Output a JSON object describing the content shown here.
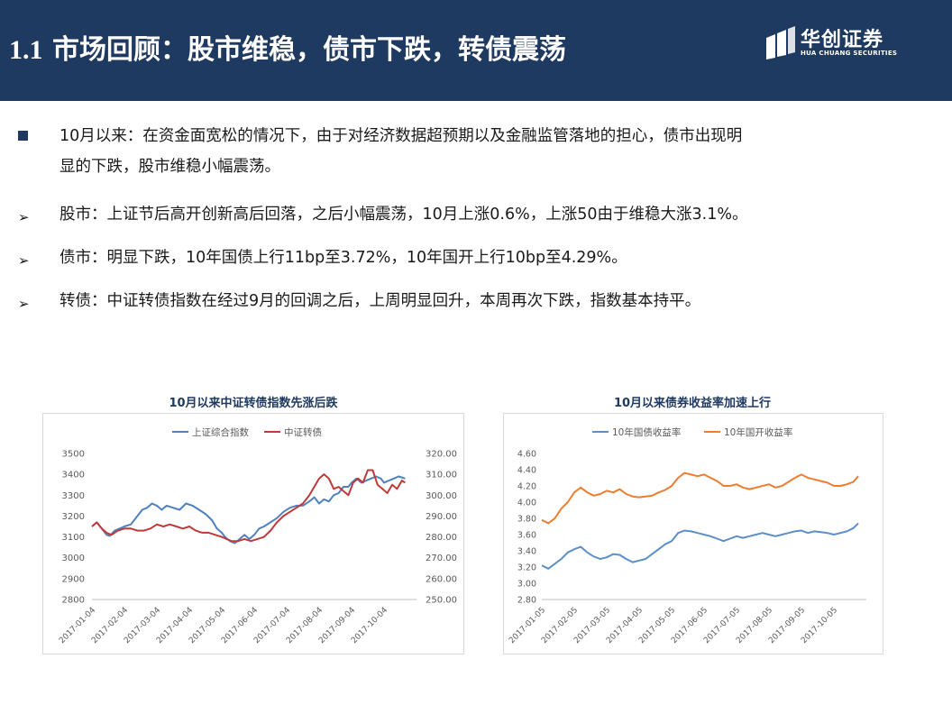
{
  "header": {
    "title_num": "1.1",
    "title_text": "市场回顾：股市维稳，债市下跌，转债震荡",
    "logo_name": "华创证券",
    "logo_sub": "HUA CHUANG SECURITIES"
  },
  "bullets": {
    "intro_line1": "10月以来：在资金面宽松的情况下，由于对经济数据超预期以及金融监管落地的担心，债市出现明",
    "intro_line2": "显的下跌，股市维稳小幅震荡。",
    "stock": "股市：上证节后高开创新高后回落，之后小幅震荡，10月上涨0.6%，上涨50由于维稳大涨3.1%。",
    "bond": "债市：明显下跌，10年国债上行11bp至3.72%，10年国开上行10bp至4.29%。",
    "cb": "转债：中证转债指数在经过9月的回调之后，上周明显回升，本周再次下跌，指数基本持平。"
  },
  "colors": {
    "navy": "#1f3a60",
    "blue_series": "#4f81bd",
    "red_series": "#c0393b",
    "orange_series": "#ed7d31",
    "blue_series2": "#5b8fc7"
  },
  "chart_data": [
    {
      "type": "line",
      "title": "10月以来中证转债指数先涨后跌",
      "categories": [
        "2017-01-04",
        "2017-02-04",
        "2017-03-04",
        "2017-04-04",
        "2017-05-04",
        "2017-06-04",
        "2017-07-04",
        "2017-08-04",
        "2017-09-04",
        "2017-10-04"
      ],
      "y_left_ticks": [
        "3500",
        "3400",
        "3300",
        "3200",
        "3100",
        "3000",
        "2900",
        "2800"
      ],
      "y_right_ticks": [
        "320.00",
        "310.00",
        "300.00",
        "290.00",
        "280.00",
        "270.00",
        "260.00",
        "250.00"
      ],
      "ylim_left": [
        2800,
        3500
      ],
      "ylim_right": [
        250,
        320
      ],
      "legend": "top",
      "series": [
        {
          "name": "上证综合指数",
          "axis": "left",
          "x": [
            0,
            0.15,
            0.3,
            0.45,
            0.55,
            0.7,
            0.85,
            1.0,
            1.2,
            1.4,
            1.55,
            1.7,
            1.85,
            2.0,
            2.15,
            2.3,
            2.5,
            2.7,
            2.9,
            3.1,
            3.3,
            3.5,
            3.7,
            3.85,
            4.0,
            4.1,
            4.25,
            4.4,
            4.55,
            4.7,
            4.85,
            5.0,
            5.15,
            5.3,
            5.5,
            5.7,
            5.9,
            6.1,
            6.3,
            6.5,
            6.7,
            6.85,
            7.0,
            7.15,
            7.3,
            7.45,
            7.6,
            7.75,
            7.9,
            8.0,
            8.15,
            8.3,
            8.45,
            8.6,
            8.75,
            8.9,
            9.0,
            9.15,
            9.3,
            9.45,
            9.55,
            9.65
          ],
          "values": [
            3150,
            3170,
            3140,
            3110,
            3105,
            3130,
            3140,
            3150,
            3160,
            3200,
            3230,
            3240,
            3260,
            3250,
            3230,
            3250,
            3240,
            3230,
            3260,
            3250,
            3230,
            3210,
            3180,
            3140,
            3120,
            3100,
            3080,
            3070,
            3090,
            3110,
            3090,
            3110,
            3140,
            3150,
            3170,
            3190,
            3220,
            3240,
            3250,
            3250,
            3270,
            3290,
            3260,
            3280,
            3270,
            3300,
            3310,
            3340,
            3340,
            3360,
            3380,
            3360,
            3370,
            3380,
            3390,
            3380,
            3360,
            3370,
            3380,
            3390,
            3385,
            3380
          ]
        },
        {
          "name": "中证转债",
          "axis": "right",
          "x": [
            0,
            0.15,
            0.3,
            0.45,
            0.6,
            0.8,
            1.0,
            1.2,
            1.4,
            1.6,
            1.8,
            2.0,
            2.2,
            2.4,
            2.6,
            2.8,
            3.0,
            3.2,
            3.4,
            3.6,
            3.8,
            4.0,
            4.15,
            4.3,
            4.5,
            4.7,
            4.9,
            5.1,
            5.3,
            5.5,
            5.7,
            5.9,
            6.1,
            6.3,
            6.5,
            6.7,
            6.85,
            7.0,
            7.15,
            7.3,
            7.45,
            7.6,
            7.75,
            7.9,
            8.05,
            8.2,
            8.35,
            8.5,
            8.65,
            8.8,
            8.95,
            9.1,
            9.25,
            9.4,
            9.55,
            9.65
          ],
          "values": [
            285,
            287,
            284,
            282,
            281,
            283,
            284,
            284,
            283,
            283,
            284,
            286,
            285,
            286,
            285,
            284,
            285,
            283,
            282,
            282,
            281,
            280,
            279,
            278,
            278,
            279,
            278,
            279,
            280,
            283,
            287,
            290,
            292,
            294,
            296,
            300,
            304,
            308,
            310,
            308,
            303,
            304,
            302,
            300,
            306,
            308,
            306,
            312,
            312,
            305,
            303,
            301,
            305,
            303,
            307,
            306
          ]
        }
      ]
    },
    {
      "type": "line",
      "title": "10月以来债券收益率加速上行",
      "categories": [
        "2017-01-05",
        "2017-02-05",
        "2017-03-05",
        "2017-04-05",
        "2017-05-05",
        "2017-06-05",
        "2017-07-05",
        "2017-08-05",
        "2017-09-05",
        "2017-10-05"
      ],
      "y_ticks": [
        "4.60",
        "4.40",
        "4.20",
        "4.00",
        "3.80",
        "3.60",
        "3.40",
        "3.20",
        "3.00",
        "2.80"
      ],
      "ylim": [
        2.8,
        4.6
      ],
      "legend": "top",
      "series": [
        {
          "name": "10年国债收益率",
          "x": [
            0,
            0.2,
            0.4,
            0.6,
            0.8,
            1.0,
            1.2,
            1.4,
            1.6,
            1.8,
            2.0,
            2.2,
            2.4,
            2.6,
            2.8,
            3.0,
            3.2,
            3.4,
            3.6,
            3.8,
            4.0,
            4.2,
            4.4,
            4.6,
            4.8,
            5.0,
            5.2,
            5.4,
            5.6,
            5.8,
            6.0,
            6.2,
            6.4,
            6.6,
            6.8,
            7.0,
            7.2,
            7.4,
            7.6,
            7.8,
            8.0,
            8.2,
            8.4,
            8.6,
            8.8,
            9.0,
            9.2,
            9.4,
            9.6,
            9.75
          ],
          "values": [
            3.22,
            3.18,
            3.24,
            3.3,
            3.38,
            3.42,
            3.45,
            3.38,
            3.33,
            3.3,
            3.32,
            3.36,
            3.35,
            3.3,
            3.26,
            3.28,
            3.3,
            3.36,
            3.42,
            3.48,
            3.52,
            3.62,
            3.65,
            3.64,
            3.62,
            3.6,
            3.58,
            3.55,
            3.52,
            3.55,
            3.58,
            3.56,
            3.58,
            3.6,
            3.62,
            3.6,
            3.58,
            3.6,
            3.62,
            3.64,
            3.65,
            3.62,
            3.64,
            3.63,
            3.62,
            3.6,
            3.62,
            3.64,
            3.68,
            3.74
          ]
        },
        {
          "name": "10年国开收益率",
          "x": [
            0,
            0.2,
            0.4,
            0.6,
            0.8,
            1.0,
            1.2,
            1.4,
            1.6,
            1.8,
            2.0,
            2.2,
            2.4,
            2.6,
            2.8,
            3.0,
            3.2,
            3.4,
            3.6,
            3.8,
            4.0,
            4.2,
            4.4,
            4.6,
            4.8,
            5.0,
            5.2,
            5.4,
            5.6,
            5.8,
            6.0,
            6.2,
            6.4,
            6.6,
            6.8,
            7.0,
            7.2,
            7.4,
            7.6,
            7.8,
            8.0,
            8.2,
            8.4,
            8.6,
            8.8,
            9.0,
            9.2,
            9.4,
            9.6,
            9.75
          ],
          "values": [
            3.78,
            3.74,
            3.8,
            3.92,
            4.0,
            4.12,
            4.18,
            4.12,
            4.08,
            4.1,
            4.14,
            4.12,
            4.16,
            4.1,
            4.07,
            4.06,
            4.07,
            4.08,
            4.12,
            4.15,
            4.2,
            4.3,
            4.36,
            4.34,
            4.32,
            4.34,
            4.3,
            4.26,
            4.2,
            4.2,
            4.22,
            4.18,
            4.16,
            4.18,
            4.2,
            4.22,
            4.18,
            4.2,
            4.25,
            4.3,
            4.34,
            4.3,
            4.28,
            4.26,
            4.24,
            4.2,
            4.2,
            4.22,
            4.25,
            4.32
          ]
        }
      ]
    }
  ]
}
